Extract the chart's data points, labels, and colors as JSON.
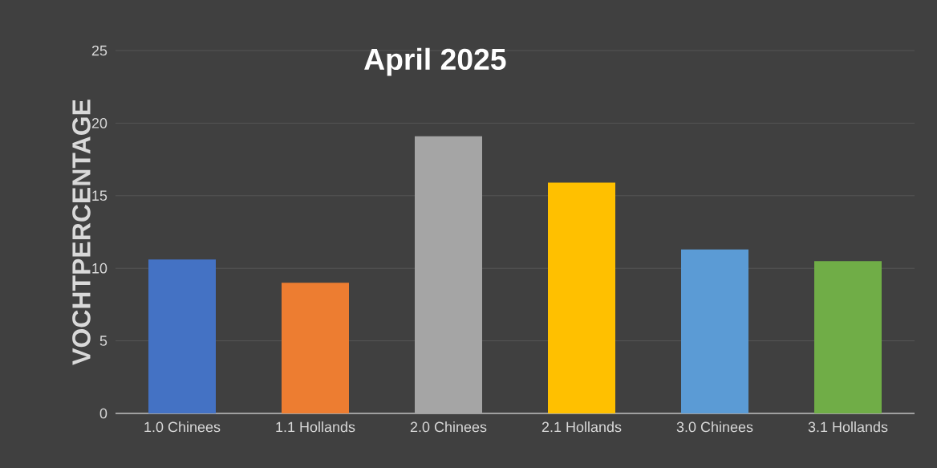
{
  "chart_data": {
    "type": "bar",
    "title": "April 2025",
    "ylabel": "VOCHTPERCENTAGE",
    "categories": [
      "1.0 Chinees",
      "1.1 Hollands",
      "2.0 Chinees",
      "2.1 Hollands",
      "3.0 Chinees",
      "3.1 Hollands"
    ],
    "values": [
      10.6,
      9.0,
      19.1,
      15.9,
      11.3,
      10.5
    ],
    "colors": [
      "#4472c4",
      "#ed7d31",
      "#a5a5a5",
      "#ffc000",
      "#5b9bd5",
      "#70ad47"
    ],
    "ylim": [
      0,
      25
    ],
    "yticks": [
      0,
      5,
      10,
      15,
      20,
      25
    ],
    "grid": "y"
  }
}
